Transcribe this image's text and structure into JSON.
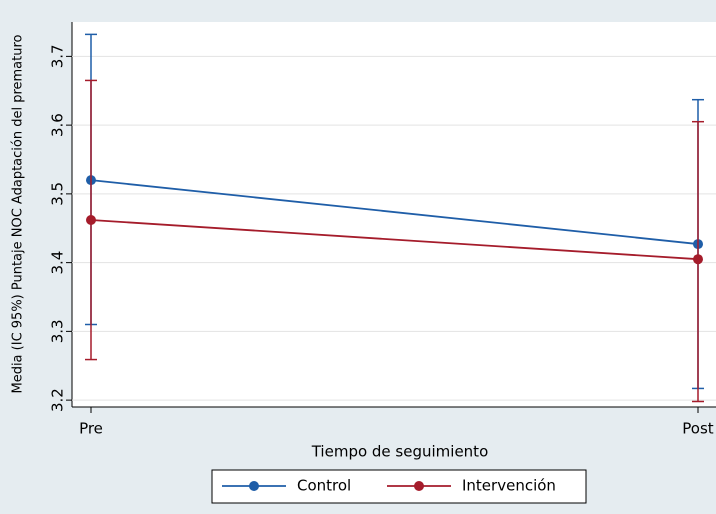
{
  "chart_data": {
    "type": "line",
    "categories": [
      "Pre",
      "Post"
    ],
    "series": [
      {
        "name": "Control",
        "color": "#1f5ea8",
        "values": [
          3.52,
          3.427
        ],
        "lower": [
          3.31,
          3.217
        ],
        "upper": [
          3.732,
          3.637
        ]
      },
      {
        "name": "Intervención",
        "color": "#a51c2b",
        "values": [
          3.462,
          3.405
        ],
        "lower": [
          3.259,
          3.198
        ],
        "upper": [
          3.665,
          3.605
        ]
      }
    ],
    "ylabel": "Media (IC 95%) Puntaje NOC Adaptación del prematuro",
    "xlabel": "Tiempo de seguimiento",
    "ylim": [
      3.19,
      3.75
    ],
    "yticks": [
      3.2,
      3.3,
      3.4,
      3.5,
      3.6,
      3.7
    ],
    "grid": true,
    "legend": "bottom"
  }
}
